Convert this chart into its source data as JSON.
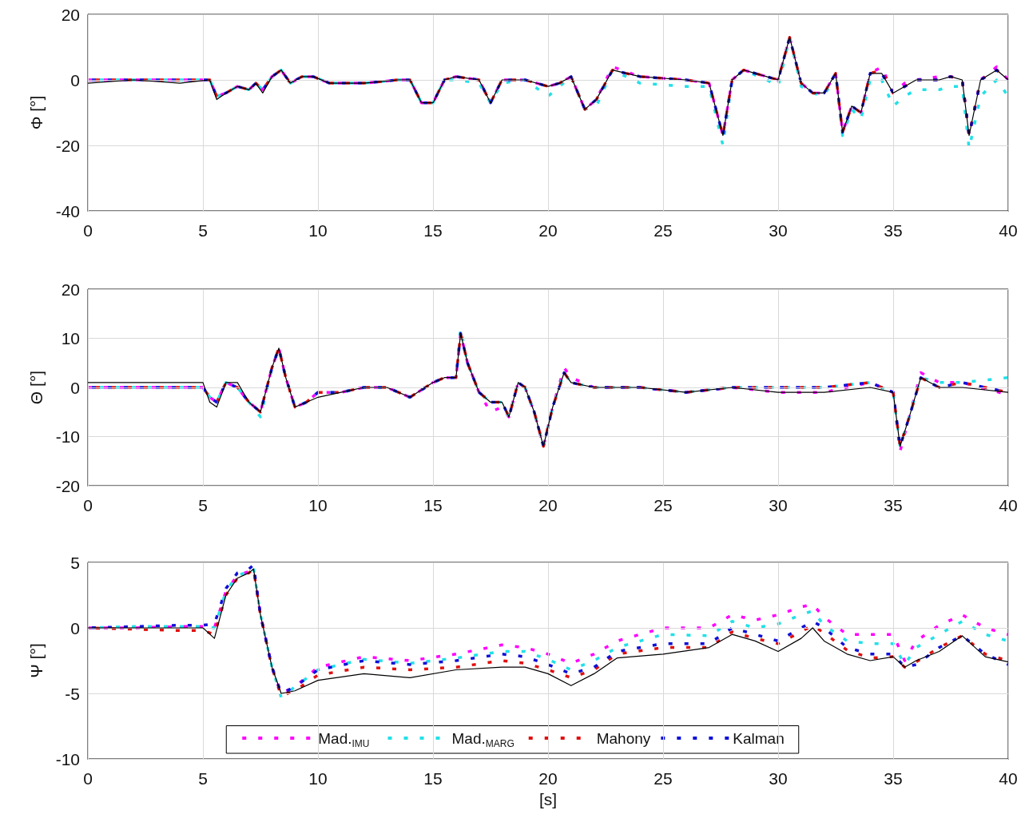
{
  "chart_data": [
    {
      "type": "line",
      "ylabel": "Φ [°]",
      "xlim": [
        0,
        40
      ],
      "xticks": [
        0,
        5,
        10,
        15,
        20,
        25,
        30,
        35,
        40
      ],
      "ylim": [
        -40,
        20
      ],
      "yticks": [
        -40,
        -20,
        0,
        20
      ],
      "grid": true,
      "x": [
        0,
        2,
        4,
        5.3,
        5.6,
        6,
        6.5,
        7,
        7.3,
        7.6,
        8,
        8.4,
        8.8,
        9.3,
        9.8,
        10.5,
        12,
        13.5,
        14,
        14.5,
        15,
        15.5,
        16,
        17,
        17.5,
        18,
        19,
        20,
        20.5,
        21,
        21.6,
        22.1,
        22.8,
        24,
        26,
        27,
        27.6,
        28,
        28.5,
        29.5,
        30,
        30.5,
        31,
        31.5,
        32,
        32.5,
        32.8,
        33.2,
        33.6,
        34,
        34.5,
        35,
        35.5,
        36,
        37,
        37.5,
        38,
        38.3,
        38.8,
        39.5,
        40
      ],
      "series": [
        {
          "color": "#000000",
          "line_style": "solid",
          "values": [
            -1,
            0,
            -1,
            0,
            -6,
            -4,
            -2,
            -3,
            -1,
            -4,
            1,
            3,
            -1,
            1,
            1,
            -1,
            -1,
            0,
            0,
            -7,
            -7,
            0,
            1,
            0,
            -7,
            0,
            0,
            -2,
            -1,
            1,
            -9,
            -6,
            3,
            1,
            0,
            -1,
            -17,
            0,
            3,
            1,
            0,
            13,
            -1,
            -4,
            -4,
            2,
            -16,
            -8,
            -10,
            2,
            2,
            -4,
            -2,
            0,
            0,
            1,
            0,
            -17,
            0,
            3,
            0
          ]
        },
        {
          "color": "#ff00ff",
          "line_style": "dashed",
          "values": [
            0,
            0,
            0,
            0,
            -5,
            -4,
            -2,
            -3,
            -1,
            -3,
            1,
            3,
            -1,
            1,
            1,
            -1,
            -1,
            0,
            0,
            -7,
            -7,
            0,
            1,
            0,
            -7,
            0,
            0,
            -2,
            -1,
            1,
            -9,
            -6,
            4,
            1,
            0,
            -1,
            -17,
            0,
            3,
            1,
            0,
            13,
            -1,
            -4,
            -4,
            2,
            -16,
            -8,
            -10,
            2,
            4,
            -4,
            -1,
            0,
            1,
            1,
            0,
            -17,
            0,
            4,
            0
          ]
        },
        {
          "color": "#22e0e8",
          "line_style": "dashed",
          "values": [
            0,
            0,
            0,
            0,
            -5,
            -4,
            -2,
            -3,
            -1,
            -3,
            1,
            3,
            -1,
            1,
            1,
            -1,
            -1,
            0,
            0,
            -7,
            -7,
            0,
            0,
            -1,
            -7,
            -1,
            0,
            -5,
            -2,
            1,
            -9,
            -8,
            3,
            -1,
            -2,
            -2,
            -20,
            0,
            3,
            0,
            -2,
            13,
            -2,
            -4,
            -5,
            2,
            -17,
            -9,
            -12,
            0,
            0,
            -8,
            -5,
            -3,
            -3,
            -2,
            -2,
            -21,
            -5,
            0,
            -5
          ]
        },
        {
          "color": "#e01010",
          "line_style": "dashed",
          "values": [
            0,
            0,
            0,
            0,
            -5,
            -4,
            -2,
            -3,
            -1,
            -3,
            1,
            3,
            -1,
            1,
            1,
            -1,
            -1,
            0,
            0,
            -7,
            -7,
            0,
            1,
            0,
            -7,
            0,
            0,
            -2,
            -1,
            1,
            -9,
            -6,
            3,
            1,
            0,
            -1,
            -17,
            0,
            3,
            1,
            0,
            13,
            -1,
            -4,
            -4,
            2,
            -16,
            -8,
            -10,
            2,
            3,
            -4,
            -2,
            0,
            0,
            1,
            0,
            -17,
            0,
            3,
            0
          ]
        },
        {
          "color": "#1010d8",
          "line_style": "dashed",
          "values": [
            0,
            0,
            0,
            0,
            -5,
            -4,
            -2,
            -3,
            -1,
            -3,
            1,
            3,
            -1,
            1,
            1,
            -1,
            -1,
            0,
            0,
            -7,
            -7,
            0,
            1,
            0,
            -7,
            0,
            0,
            -2,
            -1,
            1,
            -9,
            -6,
            3,
            1,
            0,
            -1,
            -17,
            0,
            3,
            1,
            0,
            13,
            -1,
            -4,
            -4,
            2,
            -16,
            -8,
            -10,
            2,
            2,
            -4,
            -2,
            0,
            0,
            1,
            0,
            -17,
            0,
            3,
            0
          ]
        }
      ]
    },
    {
      "type": "line",
      "ylabel": "Θ [°]",
      "xlim": [
        0,
        40
      ],
      "xticks": [
        0,
        5,
        10,
        15,
        20,
        25,
        30,
        35,
        40
      ],
      "ylim": [
        -20,
        20
      ],
      "yticks": [
        -20,
        -10,
        0,
        10,
        20
      ],
      "grid": true,
      "x": [
        0,
        2,
        4,
        5,
        5.3,
        5.6,
        6,
        6.5,
        7,
        7.5,
        8,
        8.3,
        8.6,
        9,
        9.5,
        10,
        11,
        12,
        13,
        14,
        15,
        15.5,
        16,
        16.2,
        16.5,
        17,
        17.5,
        18,
        18.3,
        18.7,
        19,
        19.4,
        19.8,
        20.2,
        20.7,
        21,
        22,
        24,
        26,
        28,
        30,
        32,
        34,
        35,
        35.3,
        35.7,
        36.2,
        37,
        38,
        40
      ],
      "series": [
        {
          "color": "#000000",
          "line_style": "solid",
          "values": [
            1,
            1,
            1,
            1,
            -3,
            -4,
            1,
            1,
            -3,
            -5,
            4,
            8,
            2,
            -4,
            -3,
            -2,
            -1,
            0,
            0,
            -2,
            1,
            2,
            2,
            11,
            5,
            -1,
            -3,
            -3,
            -6,
            1,
            0,
            -5,
            -12,
            -4,
            3,
            1,
            0,
            0,
            -1,
            0,
            -1,
            -1,
            0,
            -1,
            -12,
            -6,
            2,
            0,
            0,
            -1
          ]
        },
        {
          "color": "#ff00ff",
          "line_style": "dashed",
          "values": [
            0,
            0,
            0,
            0,
            -2,
            -3,
            1,
            0,
            -3,
            -5,
            4,
            8,
            2,
            -4,
            -3,
            -1,
            -1,
            0,
            0,
            -2,
            1,
            2,
            2,
            11,
            5,
            -1,
            -5,
            -4,
            -6,
            1,
            0,
            -5,
            -12,
            -4,
            4,
            2,
            0,
            0,
            -1,
            0,
            -1,
            -1,
            1,
            -1,
            -13,
            -6,
            3,
            1,
            1,
            -1.5
          ]
        },
        {
          "color": "#22e0e8",
          "line_style": "dashed",
          "values": [
            0,
            0,
            0,
            0,
            -2,
            -3,
            1,
            0,
            -3,
            -6,
            4,
            8,
            2,
            -4,
            -3,
            -1,
            -1,
            0,
            0,
            -2,
            1,
            2,
            2,
            12,
            5,
            -1,
            -3,
            -3,
            -6,
            1,
            0,
            -5,
            -12,
            -4,
            3,
            1,
            0,
            0,
            -1,
            0,
            0,
            0,
            1,
            -1,
            -12,
            -6,
            2,
            1,
            1,
            2
          ]
        },
        {
          "color": "#e01010",
          "line_style": "dashed",
          "values": [
            0,
            0,
            0,
            0,
            -2,
            -3,
            1,
            0,
            -3,
            -5,
            4,
            8,
            2,
            -4,
            -3,
            -1,
            -1,
            0,
            0,
            -2,
            1,
            2,
            2,
            11,
            5,
            -1,
            -3,
            -3,
            -6,
            1,
            0,
            -5,
            -12,
            -4,
            3,
            1,
            0,
            0,
            -1,
            0,
            0,
            0,
            1,
            -1,
            -12,
            -6,
            2,
            0,
            1,
            -1
          ]
        },
        {
          "color": "#1010d8",
          "line_style": "dashed",
          "values": [
            0,
            0,
            0,
            0,
            -2,
            -3,
            1,
            0,
            -3,
            -5,
            4,
            8,
            2,
            -4,
            -3,
            -1,
            -1,
            0,
            0,
            -2,
            1,
            2,
            2,
            11,
            5,
            -1,
            -3,
            -3,
            -6,
            1,
            0,
            -5,
            -12,
            -4,
            3,
            1,
            0,
            0,
            -1,
            0,
            0,
            0,
            1,
            -1,
            -12,
            -6,
            2,
            0,
            1,
            -1
          ]
        }
      ]
    },
    {
      "type": "line",
      "ylabel": "Ψ [°]",
      "xlabel": "[s]",
      "xlim": [
        0,
        40
      ],
      "xticks": [
        0,
        5,
        10,
        15,
        20,
        25,
        30,
        35,
        40
      ],
      "ylim": [
        -10,
        5
      ],
      "yticks": [
        -10,
        -5,
        0,
        5
      ],
      "grid": true,
      "legend": "bottom",
      "x": [
        0,
        2,
        4,
        5,
        5.5,
        6,
        6.5,
        7,
        7.2,
        7.5,
        8,
        8.4,
        9,
        10,
        12,
        14,
        16,
        18,
        19,
        20,
        21,
        22,
        23,
        25,
        27,
        28,
        29,
        30,
        31,
        31.5,
        32,
        33,
        34,
        35,
        35.5,
        36,
        37,
        38,
        39,
        40
      ],
      "series": [
        {
          "color": "#000000",
          "line_style": "solid",
          "values": [
            0,
            0,
            0,
            0,
            -0.8,
            2.5,
            3.8,
            4.2,
            4.5,
            1,
            -3,
            -5,
            -4.8,
            -4,
            -3.5,
            -3.8,
            -3.2,
            -3,
            -3,
            -3.5,
            -4.4,
            -3.5,
            -2.3,
            -2,
            -1.5,
            -0.5,
            -1,
            -1.8,
            -0.8,
            0,
            -1,
            -2,
            -2.5,
            -2.2,
            -3,
            -2.5,
            -1.8,
            -0.6,
            -2.2,
            -2.6
          ]
        },
        {
          "name": "Mad.$_{IMU}$",
          "color": "#ff00ff",
          "line_style": "dashed",
          "values": [
            0,
            0,
            0.1,
            0.1,
            0,
            2.8,
            4,
            4.3,
            4.5,
            1,
            -3,
            -5,
            -4.5,
            -3,
            -2.2,
            -2.5,
            -2,
            -1.3,
            -1.5,
            -2,
            -2.7,
            -2,
            -1,
            0,
            0,
            1,
            0.6,
            1,
            1.6,
            1.8,
            0.8,
            -0.5,
            -0.5,
            -0.5,
            -2.5,
            -1,
            0.2,
            1,
            0,
            -0.5
          ]
        },
        {
          "name": "Mad.$_{MARG}$",
          "color": "#22e0e8",
          "line_style": "dashed",
          "values": [
            0,
            0.1,
            0.1,
            0.1,
            0,
            2.8,
            4,
            4.3,
            4.6,
            1,
            -3,
            -5.3,
            -4.5,
            -3.2,
            -2.4,
            -2.7,
            -2.3,
            -1.8,
            -1.8,
            -2.4,
            -3.2,
            -2.5,
            -1.5,
            -0.5,
            -0.6,
            0.5,
            0,
            0.3,
            1,
            1.3,
            0.2,
            -1,
            -1.2,
            -1.2,
            -2.8,
            -1.5,
            -0.5,
            0.5,
            -0.5,
            -1
          ]
        },
        {
          "name": "Mahony",
          "color": "#e01010",
          "line_style": "dashed",
          "values": [
            0,
            -0.1,
            -0.2,
            -0.2,
            -0.5,
            2.5,
            3.8,
            4.2,
            4.5,
            1,
            -3,
            -5.2,
            -4.8,
            -3.6,
            -3,
            -3.2,
            -3,
            -2.5,
            -2.7,
            -3.2,
            -3.8,
            -3.2,
            -2,
            -1.5,
            -1.5,
            -0.3,
            -0.8,
            -1.2,
            -0.3,
            0.2,
            -0.4,
            -1.7,
            -2.3,
            -2.2,
            -3,
            -2.6,
            -1.5,
            -0.6,
            -2,
            -2.5
          ]
        },
        {
          "name": "Kalman",
          "color": "#1010d8",
          "line_style": "dashed",
          "values": [
            0,
            0.1,
            0.2,
            0.2,
            0.3,
            3,
            4.2,
            4.5,
            4.8,
            1,
            -3,
            -5,
            -4.5,
            -3.2,
            -2.5,
            -2.8,
            -2.5,
            -2,
            -2.2,
            -2.8,
            -3.5,
            -3,
            -1.8,
            -1.2,
            -1.2,
            0,
            -0.5,
            -1,
            0,
            0.5,
            0,
            -1.5,
            -2,
            -2,
            -3,
            -2.8,
            -1.5,
            -0.6,
            -2,
            -2.8
          ]
        }
      ]
    }
  ]
}
